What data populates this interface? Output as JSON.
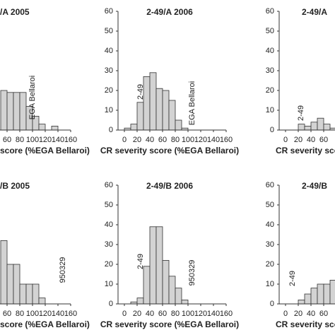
{
  "chart_data": [
    {
      "type": "histogram",
      "title": "/A 2005",
      "xlabel": "score (%EGA Bellaroi)",
      "bins": [
        50,
        60,
        70,
        80,
        90,
        100,
        110,
        120,
        130,
        140,
        150
      ],
      "counts": [
        20,
        19,
        19,
        19,
        12,
        7,
        3,
        0,
        2,
        0
      ],
      "xlim": [
        -10,
        160
      ],
      "ylim": [
        0,
        60
      ],
      "xticks": [
        60,
        80,
        100,
        120,
        140,
        160
      ],
      "annotations": [
        "EGA Bellaroi"
      ],
      "color": "#d3d3d3"
    },
    {
      "type": "histogram",
      "title": "2-49/A 2006",
      "xlabel": "CR severity score (%EGA Bellaroi)",
      "bins": [
        0,
        10,
        20,
        30,
        40,
        50,
        60,
        70,
        80,
        90,
        100
      ],
      "counts": [
        1,
        3,
        14,
        27,
        29,
        21,
        20,
        15,
        5,
        1
      ],
      "xlim": [
        -10,
        160
      ],
      "ylim": [
        0,
        60
      ],
      "xticks": [
        0,
        20,
        40,
        60,
        80,
        100,
        120,
        140,
        160
      ],
      "yticks": [
        0,
        10,
        20,
        30,
        40,
        50,
        60
      ],
      "annotations": [
        "2-49",
        "EGA Bellaroi"
      ],
      "color": "#d3d3d3"
    },
    {
      "type": "histogram",
      "title": "2-49/A",
      "xlabel": "CR severity score",
      "bins": [
        20,
        30,
        40,
        50,
        60,
        70,
        80
      ],
      "counts": [
        3,
        2,
        4,
        6,
        3,
        1
      ],
      "xlim": [
        -10,
        160
      ],
      "ylim": [
        0,
        60
      ],
      "xticks": [
        0,
        20,
        40,
        60
      ],
      "yticks": [
        0,
        10,
        20,
        30,
        40,
        50,
        60
      ],
      "annotations": [
        "2-49"
      ],
      "color": "#d3d3d3"
    },
    {
      "type": "histogram",
      "title": "/B 2005",
      "xlabel": "score (%EGA Bellaroi)",
      "bins": [
        50,
        60,
        70,
        80,
        90,
        100,
        110,
        120
      ],
      "counts": [
        32,
        20,
        20,
        10,
        10,
        10,
        3
      ],
      "xlim": [
        -10,
        160
      ],
      "ylim": [
        0,
        60
      ],
      "xticks": [
        60,
        80,
        100,
        120,
        140,
        160
      ],
      "annotations": [
        "950329"
      ],
      "color": "#d3d3d3"
    },
    {
      "type": "histogram",
      "title": "2-49/B 2006",
      "xlabel": "CR severity score (%EGA Bellaroi)",
      "bins": [
        10,
        20,
        30,
        40,
        50,
        60,
        70,
        80,
        90,
        100
      ],
      "counts": [
        1,
        3,
        19,
        39,
        39,
        22,
        14,
        8,
        2
      ],
      "xlim": [
        -10,
        160
      ],
      "ylim": [
        0,
        60
      ],
      "xticks": [
        0,
        20,
        40,
        60,
        80,
        100,
        120,
        140,
        160
      ],
      "yticks": [
        0,
        10,
        20,
        30,
        40,
        50,
        60
      ],
      "annotations": [
        "2-49",
        "950329"
      ],
      "color": "#d3d3d3"
    },
    {
      "type": "histogram",
      "title": "2-49/B",
      "xlabel": "CR severity score",
      "bins": [
        20,
        30,
        40,
        50,
        60,
        70,
        80
      ],
      "counts": [
        2,
        5,
        8,
        10,
        10,
        12
      ],
      "xlim": [
        -10,
        160
      ],
      "ylim": [
        0,
        60
      ],
      "xticks": [
        0,
        20,
        40,
        60
      ],
      "yticks": [
        0,
        10,
        20,
        30,
        40,
        50,
        60
      ],
      "annotations": [
        "2-49"
      ],
      "color": "#d3d3d3"
    }
  ]
}
